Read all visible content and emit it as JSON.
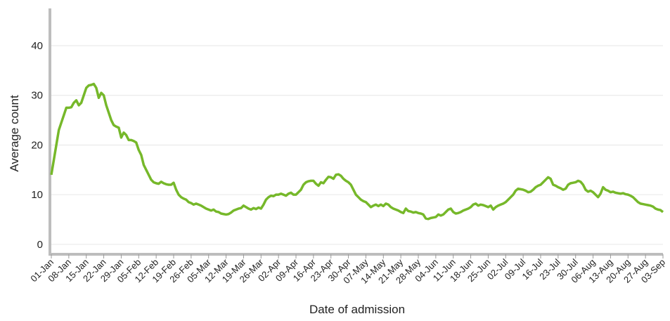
{
  "chart_data": {
    "type": "line",
    "x_label": "Date of admission",
    "y_label": "Average count",
    "color": "#76b82a",
    "grid": true,
    "ylim": [
      -2,
      47.5
    ],
    "yticks": [
      0,
      10,
      20,
      30,
      40
    ],
    "categories": [
      "01-Jan",
      null,
      null,
      null,
      null,
      null,
      null,
      "08-Jan",
      null,
      null,
      null,
      null,
      null,
      null,
      "15-Jan",
      null,
      null,
      null,
      null,
      null,
      null,
      "22-Jan",
      null,
      null,
      null,
      null,
      null,
      null,
      "29-Jan",
      null,
      null,
      null,
      null,
      null,
      null,
      "05-Feb",
      null,
      null,
      null,
      null,
      null,
      null,
      "12-Feb",
      null,
      null,
      null,
      null,
      null,
      null,
      "19-Feb",
      null,
      null,
      null,
      null,
      null,
      null,
      "26-Feb",
      null,
      null,
      null,
      null,
      null,
      null,
      "05-Mar",
      null,
      null,
      null,
      null,
      null,
      null,
      "12-Mar",
      null,
      null,
      null,
      null,
      null,
      null,
      "19-Mar",
      null,
      null,
      null,
      null,
      null,
      null,
      "26-Mar",
      null,
      null,
      null,
      null,
      null,
      null,
      "02-Apr",
      null,
      null,
      null,
      null,
      null,
      null,
      "09-Apr",
      null,
      null,
      null,
      null,
      null,
      null,
      "16-Apr",
      null,
      null,
      null,
      null,
      null,
      null,
      "23-Apr",
      null,
      null,
      null,
      null,
      null,
      null,
      "30-Apr",
      null,
      null,
      null,
      null,
      null,
      null,
      "07-May",
      null,
      null,
      null,
      null,
      null,
      null,
      "14-May",
      null,
      null,
      null,
      null,
      null,
      null,
      "21-May",
      null,
      null,
      null,
      null,
      null,
      null,
      "28-May",
      null,
      null,
      null,
      null,
      null,
      null,
      "04-Jun",
      null,
      null,
      null,
      null,
      null,
      null,
      "11-Jun",
      null,
      null,
      null,
      null,
      null,
      null,
      "18-Jun",
      null,
      null,
      null,
      null,
      null,
      null,
      "25-Jun",
      null,
      null,
      null,
      null,
      null,
      null,
      "02-Jul",
      null,
      null,
      null,
      null,
      null,
      null,
      "09-Jul",
      null,
      null,
      null,
      null,
      null,
      null,
      "16-Jul",
      null,
      null,
      null,
      null,
      null,
      null,
      "23-Jul",
      null,
      null,
      null,
      null,
      null,
      null,
      "30-Jul",
      null,
      null,
      null,
      null,
      null,
      null,
      "06-Aug",
      null,
      null,
      null,
      null,
      null,
      null,
      "13-Aug",
      null,
      null,
      null,
      null,
      null,
      null,
      "20-Aug",
      null,
      null,
      null,
      null,
      null,
      null,
      "27-Aug",
      null,
      null,
      null,
      null,
      null,
      null,
      "03-Sep"
    ],
    "values": [
      14,
      17,
      20,
      23,
      24.5,
      26,
      27.5,
      27.5,
      27.6,
      28.5,
      29,
      28,
      28.5,
      30,
      31.5,
      32,
      32.1,
      32.3,
      31.5,
      29.5,
      30.5,
      30,
      28,
      26.5,
      25,
      24,
      23.7,
      23.5,
      21.5,
      22.5,
      22,
      21,
      21,
      20.8,
      20.5,
      19,
      18,
      16,
      15,
      14,
      13,
      12.5,
      12.3,
      12.2,
      12.6,
      12.3,
      12.1,
      12,
      12,
      12.4,
      11,
      10,
      9.5,
      9.2,
      9,
      8.5,
      8.3,
      8,
      8.2,
      8,
      7.8,
      7.5,
      7.2,
      7,
      6.8,
      7,
      6.6,
      6.5,
      6.2,
      6.1,
      6,
      6.1,
      6.4,
      6.8,
      7,
      7.2,
      7.3,
      7.8,
      7.5,
      7.2,
      7,
      7.3,
      7.1,
      7.4,
      7.2,
      8,
      9,
      9.5,
      9.8,
      9.7,
      10,
      10,
      10.2,
      10,
      9.8,
      10.2,
      10.4,
      10,
      10,
      10.5,
      11,
      12,
      12.5,
      12.7,
      12.8,
      12.8,
      12.2,
      11.8,
      12.5,
      12.3,
      13,
      13.6,
      13.5,
      13.2,
      14,
      14.1,
      13.8,
      13.2,
      12.8,
      12.5,
      12,
      11,
      10,
      9.5,
      9,
      8.7,
      8.5,
      8,
      7.5,
      7.8,
      8,
      7.7,
      8,
      7.7,
      8.2,
      8,
      7.5,
      7.2,
      7,
      6.8,
      6.5,
      6.3,
      7.2,
      6.7,
      6.6,
      6.4,
      6.5,
      6.3,
      6.2,
      6,
      5.2,
      5.1,
      5.3,
      5.4,
      5.5,
      6,
      5.8,
      6,
      6.5,
      7,
      7.2,
      6.5,
      6.2,
      6.3,
      6.5,
      6.8,
      7,
      7.2,
      7.5,
      8,
      8.2,
      7.8,
      8,
      7.9,
      7.7,
      7.5,
      7.8,
      7,
      7.5,
      7.8,
      8,
      8.2,
      8.5,
      9,
      9.5,
      10,
      10.8,
      11.2,
      11.1,
      11,
      10.8,
      10.5,
      10.6,
      11,
      11.5,
      11.8,
      12,
      12.5,
      13,
      13.5,
      13.2,
      12,
      11.8,
      11.5,
      11.3,
      11,
      11.2,
      12,
      12.3,
      12.4,
      12.5,
      12.8,
      12.6,
      12,
      11,
      10.6,
      10.8,
      10.5,
      10,
      9.5,
      10.2,
      11.5,
      11,
      10.8,
      10.5,
      10.6,
      10.4,
      10.3,
      10.2,
      10.3,
      10.1,
      10,
      9.8,
      9.5,
      9,
      8.5,
      8.2,
      8.1,
      8,
      7.9,
      7.8,
      7.6,
      7.2,
      7,
      6.9,
      6.5
    ]
  }
}
